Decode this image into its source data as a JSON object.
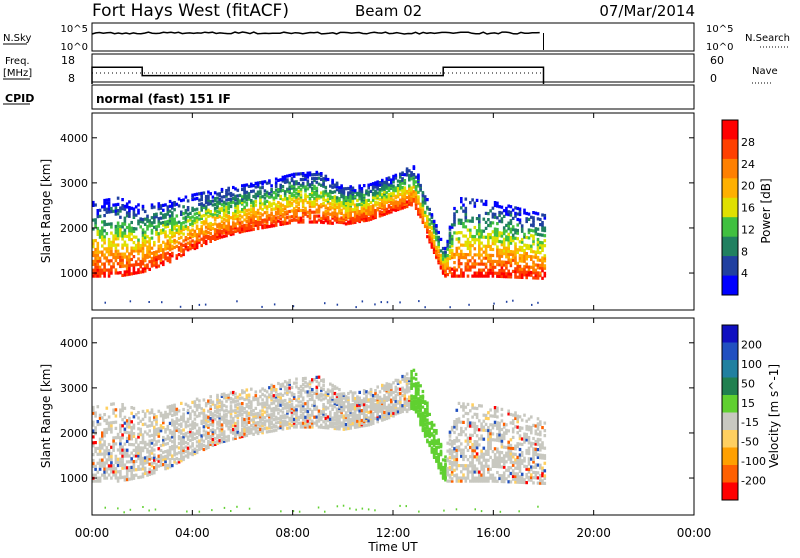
{
  "header": {
    "title": "Fort Hays West (fitACF)",
    "beam": "Beam 02",
    "date": "07/Mar/2014"
  },
  "strip_labels": {
    "nsky": "N.Sky",
    "nsky_ticks": [
      "10^5",
      "10^0"
    ],
    "nsearch": "N.Search",
    "freq_line1": "Freq.",
    "freq_line2": "[MHz]",
    "freq_ticks": [
      "18",
      "8"
    ],
    "nave_ticks": [
      "60",
      "0"
    ],
    "nave": "Nave",
    "cpid": "CPID",
    "cpid_value": "normal (fast) 151 IF"
  },
  "chart_data": {
    "type": "heatmap",
    "xlabel": "Time UT",
    "x_ticks": [
      "00:00",
      "04:00",
      "08:00",
      "12:00",
      "16:00",
      "20:00",
      "00:00"
    ],
    "x_hours": [
      0,
      4,
      8,
      12,
      16,
      20,
      24
    ],
    "xlim_hours": [
      0,
      24
    ],
    "data_coverage_hours": [
      0,
      18
    ],
    "panels": [
      {
        "name": "power",
        "ylabel": "Slant Range [km]",
        "ylim": [
          180,
          4550
        ],
        "y_ticks": [
          1000,
          2000,
          3000,
          4000
        ],
        "colorbar_label": "Power [dB]",
        "colorbar_ticks": [
          "28",
          "24",
          "20",
          "16",
          "12",
          "8",
          "4"
        ],
        "colorbar_colors": [
          "#ff0000",
          "#ff4000",
          "#ff8000",
          "#ffb000",
          "#e0e000",
          "#40c040",
          "#208060",
          "#2040a0",
          "#0000ff"
        ]
      },
      {
        "name": "velocity",
        "ylabel": "Slant Range [km]",
        "ylim": [
          180,
          4550
        ],
        "y_ticks": [
          1000,
          2000,
          3000,
          4000
        ],
        "colorbar_label": "Velocity [m s^-1]",
        "colorbar_ticks": [
          "200",
          "100",
          "50",
          "15",
          "-15",
          "-50",
          "-100",
          "-200"
        ],
        "colorbar_colors": [
          "#1010c0",
          "#2050c0",
          "#2080a0",
          "#208050",
          "#60d030",
          "#c8c8c0",
          "#ffd060",
          "#ffa000",
          "#ff6000",
          "#ff0000"
        ]
      }
    ],
    "echo_band_km": [
      {
        "h": 0.0,
        "lo": 900,
        "hi": 2600
      },
      {
        "h": 1.0,
        "lo": 900,
        "hi": 2700
      },
      {
        "h": 2.0,
        "lo": 1000,
        "hi": 2500
      },
      {
        "h": 3.0,
        "lo": 1200,
        "hi": 2600
      },
      {
        "h": 4.0,
        "lo": 1500,
        "hi": 2750
      },
      {
        "h": 5.0,
        "lo": 1750,
        "hi": 2850
      },
      {
        "h": 6.0,
        "lo": 1900,
        "hi": 2950
      },
      {
        "h": 7.0,
        "lo": 2000,
        "hi": 3050
      },
      {
        "h": 8.0,
        "lo": 2100,
        "hi": 3200
      },
      {
        "h": 9.0,
        "lo": 2100,
        "hi": 3250
      },
      {
        "h": 10.0,
        "lo": 2050,
        "hi": 2900
      },
      {
        "h": 11.0,
        "lo": 2150,
        "hi": 2950
      },
      {
        "h": 12.0,
        "lo": 2350,
        "hi": 3150
      },
      {
        "h": 12.8,
        "lo": 2500,
        "hi": 3400
      },
      {
        "h": 13.3,
        "lo": 1800,
        "hi": 2700
      },
      {
        "h": 14.0,
        "lo": 900,
        "hi": 1500
      },
      {
        "h": 14.5,
        "lo": 900,
        "hi": 2700
      },
      {
        "h": 16.0,
        "lo": 900,
        "hi": 2600
      },
      {
        "h": 18.0,
        "lo": 850,
        "hi": 2300
      }
    ],
    "frequency_mhz": [
      {
        "h": 0.0,
        "v": 14
      },
      {
        "h": 2.0,
        "v": 11
      },
      {
        "h": 14.0,
        "v": 14
      },
      {
        "h": 18.0,
        "v": 14
      }
    ]
  }
}
